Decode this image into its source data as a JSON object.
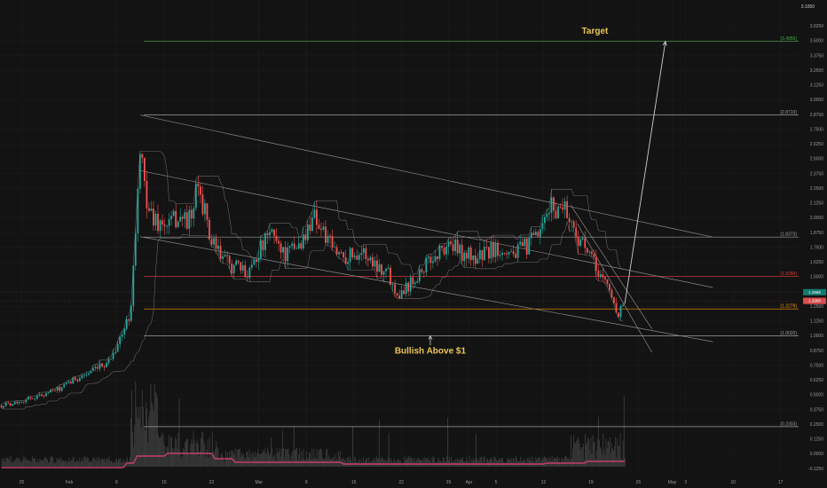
{
  "corner_label": "3.1050",
  "chart_data": {
    "type": "candlestick",
    "title": "",
    "xlabel": "",
    "ylabel": "",
    "ylim": [
      -0.09,
      3.81
    ],
    "y_ticks": [
      {
        "label": "3.6250",
        "v": 3.625
      },
      {
        "label": "3.5000",
        "v": 3.5
      },
      {
        "label": "3.3750",
        "v": 3.375
      },
      {
        "label": "3.2500",
        "v": 3.25
      },
      {
        "label": "3.1250",
        "v": 3.125
      },
      {
        "label": "3.0000",
        "v": 3.0
      },
      {
        "label": "2.8750",
        "v": 2.875
      },
      {
        "label": "2.7500",
        "v": 2.75
      },
      {
        "label": "2.6250",
        "v": 2.625
      },
      {
        "label": "2.5000",
        "v": 2.5
      },
      {
        "label": "2.3750",
        "v": 2.375
      },
      {
        "label": "2.2500",
        "v": 2.25
      },
      {
        "label": "2.1250",
        "v": 2.125
      },
      {
        "label": "2.0000",
        "v": 2.0
      },
      {
        "label": "1.8750",
        "v": 1.875
      },
      {
        "label": "1.7500",
        "v": 1.75
      },
      {
        "label": "1.6250",
        "v": 1.625
      },
      {
        "label": "1.5000",
        "v": 1.5
      },
      {
        "label": "1.3750",
        "v": 1.375
      },
      {
        "label": "1.2500",
        "v": 1.25
      },
      {
        "label": "1.1250",
        "v": 1.125
      },
      {
        "label": "1.0000",
        "v": 1.0
      },
      {
        "label": "0.8750",
        "v": 0.875
      },
      {
        "label": "0.7500",
        "v": 0.75
      },
      {
        "label": "0.6250",
        "v": 0.625
      },
      {
        "label": "0.5000",
        "v": 0.5
      },
      {
        "label": "0.3750",
        "v": 0.375
      },
      {
        "label": "0.2500",
        "v": 0.25
      },
      {
        "label": "0.1250",
        "v": 0.125
      },
      {
        "label": "0.0000",
        "v": 0.0
      },
      {
        "label": "-0.1250",
        "v": -0.125
      }
    ],
    "x_ticks": [
      {
        "label": "25",
        "d": -7
      },
      {
        "label": "Feb",
        "d": 0
      },
      {
        "label": "8",
        "d": 7
      },
      {
        "label": "15",
        "d": 14
      },
      {
        "label": "22",
        "d": 21
      },
      {
        "label": "Mar",
        "d": 28
      },
      {
        "label": "8",
        "d": 35
      },
      {
        "label": "15",
        "d": 42
      },
      {
        "label": "22",
        "d": 49
      },
      {
        "label": "29",
        "d": 56
      },
      {
        "label": "Apr",
        "d": 59
      },
      {
        "label": "5",
        "d": 63
      },
      {
        "label": "12",
        "d": 70
      },
      {
        "label": "19",
        "d": 77
      },
      {
        "label": "26",
        "d": 84
      },
      {
        "label": "May",
        "d": 89
      },
      {
        "label": "3",
        "d": 91
      },
      {
        "label": "10",
        "d": 98
      },
      {
        "label": "17",
        "d": 105
      }
    ],
    "price_path": [
      [
        -10,
        0.41
      ],
      [
        -7,
        0.45
      ],
      [
        -4,
        0.5
      ],
      [
        -1,
        0.56
      ],
      [
        1,
        0.64
      ],
      [
        4,
        0.71
      ],
      [
        6,
        0.8
      ],
      [
        7,
        0.92
      ],
      [
        8,
        1.03
      ],
      [
        9,
        1.2
      ],
      [
        9.5,
        1.6
      ],
      [
        10,
        2.1
      ],
      [
        10.5,
        2.55
      ],
      [
        11,
        2.3
      ],
      [
        12,
        2.02
      ],
      [
        14,
        1.92
      ],
      [
        16,
        2.0
      ],
      [
        18,
        1.98
      ],
      [
        19,
        2.28
      ],
      [
        20,
        2.05
      ],
      [
        21,
        1.78
      ],
      [
        23,
        1.63
      ],
      [
        25,
        1.57
      ],
      [
        26,
        1.52
      ],
      [
        28,
        1.72
      ],
      [
        30,
        1.88
      ],
      [
        32,
        1.68
      ],
      [
        34,
        1.78
      ],
      [
        35,
        1.85
      ],
      [
        36,
        2.07
      ],
      [
        37,
        1.92
      ],
      [
        39,
        1.72
      ],
      [
        41,
        1.68
      ],
      [
        43,
        1.72
      ],
      [
        45,
        1.62
      ],
      [
        47,
        1.55
      ],
      [
        48,
        1.4
      ],
      [
        49,
        1.37
      ],
      [
        51,
        1.5
      ],
      [
        53,
        1.62
      ],
      [
        55,
        1.73
      ],
      [
        56,
        1.78
      ],
      [
        58,
        1.7
      ],
      [
        60,
        1.66
      ],
      [
        62,
        1.72
      ],
      [
        64,
        1.75
      ],
      [
        66,
        1.7
      ],
      [
        68,
        1.78
      ],
      [
        70,
        1.9
      ],
      [
        71,
        2.12
      ],
      [
        72,
        2.05
      ],
      [
        73,
        2.15
      ],
      [
        74,
        1.95
      ],
      [
        75,
        1.85
      ],
      [
        76,
        1.75
      ],
      [
        77,
        1.65
      ],
      [
        78,
        1.55
      ],
      [
        79,
        1.48
      ],
      [
        80,
        1.35
      ],
      [
        81,
        1.18
      ],
      [
        81.5,
        1.25
      ],
      [
        82,
        1.29
      ]
    ],
    "sma_color": "#c43e6a",
    "last_price": "1.2968",
    "last_price_secondary": "1.2968",
    "price_tags": [
      {
        "text": "1.2968",
        "color": "#d84d4d",
        "v": 1.296
      },
      {
        "text": "1.2968",
        "color": "#137a6e",
        "v": 1.37
      }
    ],
    "fib_levels": [
      {
        "label": "(3.4950)",
        "v": 3.495,
        "color": "#4caf50"
      },
      {
        "label": "(2.8710)",
        "v": 2.871,
        "color": "#9e9e9e"
      },
      {
        "label": "(1.8373)",
        "v": 1.837,
        "color": "#9e9e9e"
      },
      {
        "label": "(1.5050)",
        "v": 1.505,
        "color": "#e53935"
      },
      {
        "label": "(1.2279)",
        "v": 1.228,
        "color": "#ff9800"
      },
      {
        "label": "(1.0020)",
        "v": 1.0,
        "color": "#9e9e9e"
      },
      {
        "label": "(0.2303)",
        "v": 0.23,
        "color": "#9e9e9e"
      }
    ],
    "channel_lines": [
      {
        "d1": 10.5,
        "v1": 2.871,
        "d2": 95,
        "v2": 1.837,
        "color": "#8a8a8a"
      },
      {
        "d1": 10.5,
        "v1": 2.4,
        "d2": 95,
        "v2": 1.41,
        "color": "#8a8a8a"
      },
      {
        "d1": 10.5,
        "v1": 1.84,
        "d2": 95,
        "v2": 0.95,
        "color": "#8a8a8a"
      },
      {
        "d1": 75,
        "v1": 1.95,
        "d2": 86,
        "v2": 0.86,
        "color": "#8a8a8a"
      },
      {
        "d1": 74,
        "v1": 2.11,
        "d2": 86,
        "v2": 1.06,
        "color": "#8a8a8a"
      }
    ],
    "projection": {
      "d1": 82,
      "v1": 1.27,
      "d2": 88,
      "v2": 3.495,
      "color": "#d0d0d0"
    },
    "annotations": [
      {
        "text": "Target",
        "color": "#e8c65a",
        "d": 77.6,
        "v": 3.56,
        "anchor": "middle"
      },
      {
        "text": "Bullish Above $1",
        "color": "#e8c65a",
        "d": 53.3,
        "v": 0.85,
        "anchor": "middle"
      }
    ],
    "arrow_to_one": {
      "d": 53.3,
      "v_from": 0.92,
      "v_to": 1.0
    }
  }
}
